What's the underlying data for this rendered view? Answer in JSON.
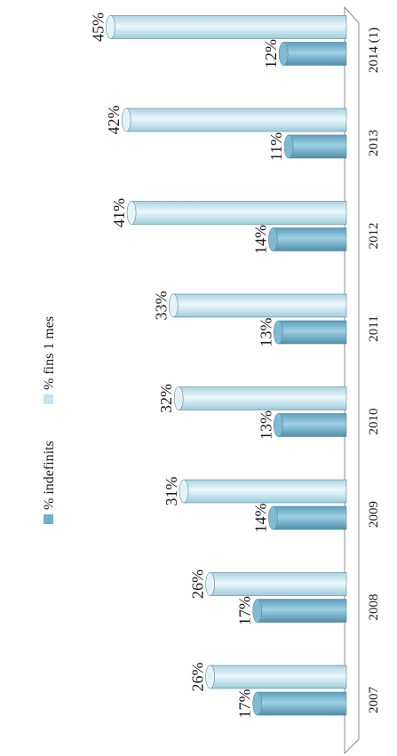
{
  "chart_data": {
    "type": "bar",
    "orientation": "horizontal-rotated",
    "title": "",
    "xlabel": "",
    "ylabel": "",
    "categories": [
      "2007",
      "2008",
      "2009",
      "2010",
      "2011",
      "2012",
      "2013",
      "2014 (1)"
    ],
    "series": [
      {
        "name": "% indefinits",
        "values": [
          17,
          17,
          14,
          13,
          13,
          14,
          11,
          12
        ],
        "labels": [
          "17%",
          "17%",
          "14%",
          "13%",
          "13%",
          "14%",
          "11%",
          "12%"
        ],
        "color": "#6fb0cc"
      },
      {
        "name": "% fins 1 mes",
        "values": [
          26,
          26,
          31,
          32,
          33,
          41,
          42,
          45
        ],
        "labels": [
          "26%",
          "26%",
          "31%",
          "32%",
          "33%",
          "41%",
          "42%",
          "45%"
        ],
        "color": "#c4e4ef"
      }
    ],
    "ylim": [
      0,
      48
    ],
    "grid": false,
    "legend": "left"
  }
}
